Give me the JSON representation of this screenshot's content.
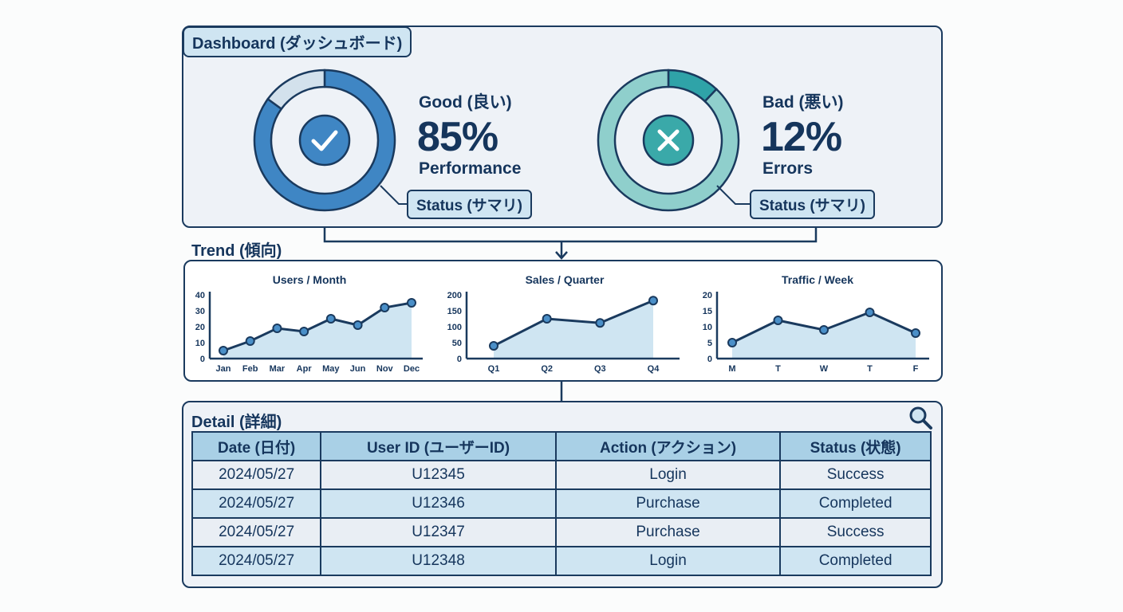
{
  "dashboard": {
    "title": "Dashboard (ダッシュボード)",
    "good": {
      "heading": "Good (良い)",
      "value": "85%",
      "percent": 85,
      "caption": "Performance",
      "status_label": "Status (サマリ)",
      "icon": "check-icon",
      "color": "#3f86c4"
    },
    "bad": {
      "heading": "Bad (悪い)",
      "value": "12%",
      "percent": 12,
      "caption": "Errors",
      "status_label": "Status (サマリ)",
      "icon": "x-icon",
      "color": "#3aa9a9"
    }
  },
  "trend": {
    "title": "Trend (傾向)"
  },
  "chart_data": [
    {
      "type": "area",
      "title": "Users / Month",
      "categories": [
        "Jan",
        "Feb",
        "Mar",
        "Apr",
        "May",
        "Jun",
        "Nov",
        "Dec"
      ],
      "values": [
        5,
        11,
        19,
        17,
        25,
        21,
        32,
        35
      ],
      "ylim": [
        0,
        40
      ],
      "yticks": [
        "0",
        "10",
        "20",
        "30",
        "40"
      ]
    },
    {
      "type": "area",
      "title": "Sales / Quarter",
      "categories": [
        "Q1",
        "Q2",
        "Q3",
        "Q4"
      ],
      "values": [
        40,
        125,
        112,
        182
      ],
      "ylim": [
        0,
        200
      ],
      "yticks": [
        "0",
        "50",
        "100",
        "150",
        "200"
      ]
    },
    {
      "type": "area",
      "title": "Traffic / Week",
      "categories": [
        "M",
        "T",
        "W",
        "T",
        "F"
      ],
      "values": [
        5,
        12,
        9,
        14.5,
        8
      ],
      "ylim": [
        0,
        20
      ],
      "yticks": [
        "0",
        "5",
        "10",
        "15",
        "20"
      ]
    }
  ],
  "detail": {
    "title": "Detail (詳細)",
    "search_icon": "magnifier-icon",
    "columns": [
      "Date (日付)",
      "User ID (ユーザーID)",
      "Action (アクション)",
      "Status (状態)"
    ],
    "rows": [
      [
        "2024/05/27",
        "U12345",
        "Login",
        "Success"
      ],
      [
        "2024/05/27",
        "U12346",
        "Purchase",
        "Completed"
      ],
      [
        "2024/05/27",
        "U12347",
        "Purchase",
        "Success"
      ],
      [
        "2024/05/27",
        "U12348",
        "Login",
        "Completed"
      ]
    ]
  }
}
